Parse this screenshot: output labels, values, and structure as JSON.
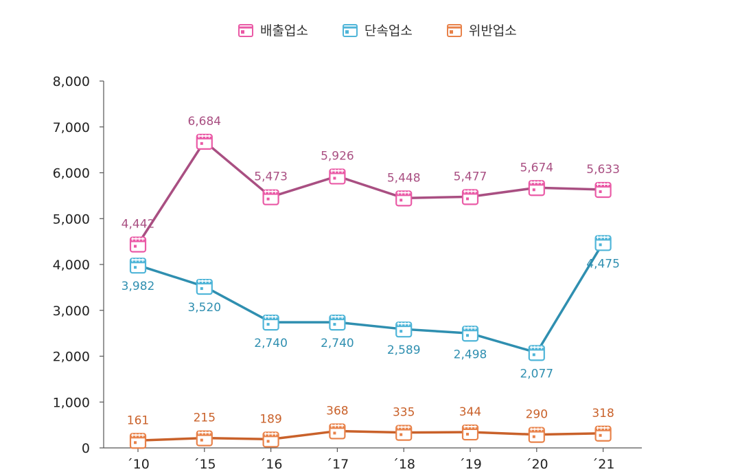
{
  "chart_data": {
    "type": "line",
    "categories": [
      "´10",
      "´15",
      "´16",
      "´17",
      "´18",
      "´19",
      "´20",
      "´21"
    ],
    "series": [
      {
        "name": "배출업소",
        "values": [
          4442,
          6684,
          5473,
          5926,
          5448,
          5477,
          5674,
          5633
        ],
        "labels": [
          "4,442",
          "6,684",
          "5,473",
          "5,926",
          "5,448",
          "5,477",
          "5,674",
          "5,633"
        ],
        "color": "#a94f82",
        "marker_color": "#ea5aa6",
        "label_position": "above"
      },
      {
        "name": "단속업소",
        "values": [
          3982,
          3520,
          2740,
          2740,
          2589,
          2498,
          2077,
          4475
        ],
        "labels": [
          "3,982",
          "3,520",
          "2,740",
          "2,740",
          "2,589",
          "2,498",
          "2,077",
          "4,475"
        ],
        "color": "#2f8fb0",
        "marker_color": "#4fb5d8",
        "label_position": "below"
      },
      {
        "name": "위반업소",
        "values": [
          161,
          215,
          189,
          368,
          335,
          344,
          290,
          318
        ],
        "labels": [
          "161",
          "215",
          "189",
          "368",
          "335",
          "344",
          "290",
          "318"
        ],
        "color": "#c9612a",
        "marker_color": "#e8824a",
        "label_position": "above"
      }
    ],
    "ylim": [
      0,
      8000
    ],
    "yticks": [
      0,
      1000,
      2000,
      3000,
      4000,
      5000,
      6000,
      7000,
      8000
    ],
    "ytick_labels": [
      "0",
      "1,000",
      "2,000",
      "3,000",
      "4,000",
      "5,000",
      "6,000",
      "7,000",
      "8,000"
    ],
    "grid": false,
    "legend_position": "top-center",
    "title": "",
    "xlabel": "",
    "ylabel": ""
  }
}
